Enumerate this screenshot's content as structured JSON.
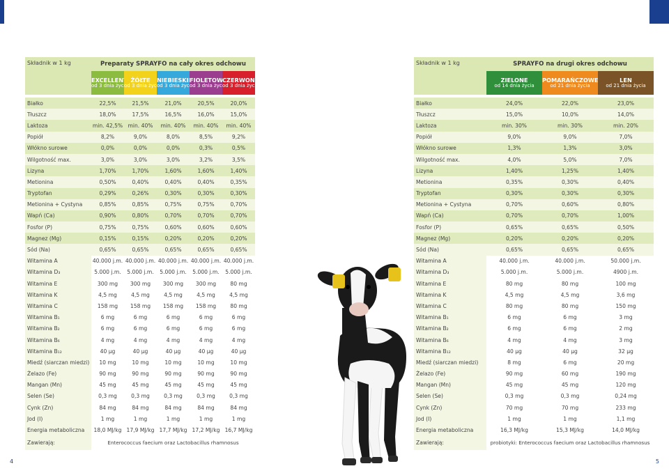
{
  "left": {
    "label_header": "Składnik w 1 kg",
    "title": "Preparaty SPRAYFO na cały okres odchowu",
    "products": [
      {
        "name": "EXCELLENT",
        "sub": "od 3 dnia życia",
        "bg": "#8bbb3f",
        "color": "#ffffff"
      },
      {
        "name": "ŻÓŁTE",
        "sub": "od 3 dnia życia",
        "bg": "#f2d21b",
        "color": "#ffffff"
      },
      {
        "name": "NIEBIESKIE",
        "sub": "od 3 dnia życia",
        "bg": "#36a9dc",
        "color": "#ffffff"
      },
      {
        "name": "FIOLETOWE",
        "sub": "od 3 dnia życia",
        "bg": "#9b3e8f",
        "color": "#ffffff"
      },
      {
        "name": "CZERWONE",
        "sub": "od 3 dnia życia",
        "bg": "#d7202c",
        "color": "#ffffff"
      }
    ],
    "rows": [
      {
        "label": "Białko",
        "values": [
          "22,5%",
          "21,5%",
          "21,0%",
          "20,5%",
          "20,0%"
        ]
      },
      {
        "label": "Tłuszcz",
        "values": [
          "18,0%",
          "17,5%",
          "16,5%",
          "16,0%",
          "15,0%"
        ]
      },
      {
        "label": "Laktoza",
        "values": [
          "min. 42,5%",
          "min. 40%",
          "min. 40%",
          "min. 40%",
          "min. 40%"
        ]
      },
      {
        "label": "Popiół",
        "values": [
          "8,2%",
          "9,0%",
          "8,0%",
          "8,5%",
          "9,2%"
        ]
      },
      {
        "label": "Włókno surowe",
        "values": [
          "0,0%",
          "0,0%",
          "0,0%",
          "0,3%",
          "0,5%"
        ]
      },
      {
        "label": "Wilgotność max.",
        "values": [
          "3,0%",
          "3,0%",
          "3,0%",
          "3,2%",
          "3,5%"
        ]
      },
      {
        "label": "Lizyna",
        "values": [
          "1,70%",
          "1,70%",
          "1,60%",
          "1,60%",
          "1,40%"
        ]
      },
      {
        "label": "Metionina",
        "values": [
          "0,50%",
          "0,40%",
          "0,40%",
          "0,40%",
          "0,35%"
        ]
      },
      {
        "label": "Tryptofan",
        "values": [
          "0,29%",
          "0,26%",
          "0,30%",
          "0,30%",
          "0,30%"
        ]
      },
      {
        "label": "Metionina + Cystyna",
        "values": [
          "0,85%",
          "0,85%",
          "0,75%",
          "0,75%",
          "0,70%"
        ]
      },
      {
        "label": "Wapń (Ca)",
        "values": [
          "0,90%",
          "0,80%",
          "0,70%",
          "0,70%",
          "0,70%"
        ]
      },
      {
        "label": "Fosfor (P)",
        "values": [
          "0,75%",
          "0,75%",
          "0,60%",
          "0,60%",
          "0,60%"
        ]
      },
      {
        "label": "Magnez (Mg)",
        "values": [
          "0,15%",
          "0,15%",
          "0,20%",
          "0,20%",
          "0,20%"
        ]
      },
      {
        "label": "Sód (Na)",
        "values": [
          "0,65%",
          "0,65%",
          "0,65%",
          "0,65%",
          "0,65%"
        ]
      },
      {
        "label": "Witamina A",
        "values": [
          "40.000 j.m.",
          "40.000 j.m.",
          "40.000 j.m.",
          "40.000 j.m.",
          "40.000 j.m."
        ]
      },
      {
        "label": "Witamina D₃",
        "values": [
          "5.000 j.m.",
          "5.000 j.m.",
          "5.000 j.m.",
          "5.000 j.m.",
          "5.000 j.m."
        ]
      },
      {
        "label": "Witamina E",
        "values": [
          "300 mg",
          "300 mg",
          "300 mg",
          "300 mg",
          "80 mg"
        ]
      },
      {
        "label": "Witamina K",
        "values": [
          "4,5 mg",
          "4,5 mg",
          "4,5 mg",
          "4,5 mg",
          "4,5 mg"
        ]
      },
      {
        "label": "Witamina C",
        "values": [
          "158 mg",
          "158 mg",
          "158 mg",
          "158 mg",
          "80 mg"
        ]
      },
      {
        "label": "Witamina B₁",
        "values": [
          "6 mg",
          "6 mg",
          "6 mg",
          "6 mg",
          "6 mg"
        ]
      },
      {
        "label": "Witamina B₂",
        "values": [
          "6 mg",
          "6 mg",
          "6 mg",
          "6 mg",
          "6 mg"
        ]
      },
      {
        "label": "Witamina B₆",
        "values": [
          "4 mg",
          "4 mg",
          "4 mg",
          "4 mg",
          "4 mg"
        ]
      },
      {
        "label": "Witamina B₁₂",
        "values": [
          "40 µg",
          "40 µg",
          "40 µg",
          "40 µg",
          "40 µg"
        ]
      },
      {
        "label": "Miedź (siarczan miedzi)",
        "values": [
          "10 mg",
          "10 mg",
          "10 mg",
          "10 mg",
          "10 mg"
        ]
      },
      {
        "label": "Żelazo (Fe)",
        "values": [
          "90 mg",
          "90 mg",
          "90 mg",
          "90 mg",
          "90 mg"
        ]
      },
      {
        "label": "Mangan (Mn)",
        "values": [
          "45 mg",
          "45 mg",
          "45 mg",
          "45 mg",
          "45 mg"
        ]
      },
      {
        "label": "Selen (Se)",
        "values": [
          "0,3 mg",
          "0,3 mg",
          "0,3 mg",
          "0,3 mg",
          "0,3 mg"
        ]
      },
      {
        "label": "Cynk (Zn)",
        "values": [
          "84 mg",
          "84 mg",
          "84 mg",
          "84 mg",
          "84 mg"
        ]
      },
      {
        "label": "Jod (I)",
        "values": [
          "1 mg",
          "1 mg",
          "1 mg",
          "1 mg",
          "1 mg"
        ]
      },
      {
        "label": "Energia metaboliczna",
        "values": [
          "18,0 MJ/kg",
          "17,9 MJ/kg",
          "17,7 MJ/kg",
          "17,2 MJ/kg",
          "16,7 MJ/kg"
        ]
      }
    ],
    "contains_label": "Zawierają:",
    "contains_value": "Enterococcus faecium oraz Lactobacillus rhamnosus",
    "page_number": "4"
  },
  "right": {
    "label_header": "Składnik w 1 kg",
    "title": "SPRAYFO na drugi okres odchowu",
    "products": [
      {
        "name": "ZIELONE",
        "sub": "od 14 dnia życia",
        "bg": "#2f8f3b",
        "color": "#ffffff"
      },
      {
        "name": "POMARAŃCZOWE",
        "sub": "od 21 dnia życia",
        "bg": "#ef8a1e",
        "color": "#ffffff"
      },
      {
        "name": "LEN",
        "sub": "od 21 dnia życia",
        "bg": "#7a5426",
        "color": "#ffffff"
      }
    ],
    "rows": [
      {
        "label": "Białko",
        "values": [
          "24,0%",
          "22,0%",
          "23,0%"
        ]
      },
      {
        "label": "Tłuszcz",
        "values": [
          "15,0%",
          "10,0%",
          "14,0%"
        ]
      },
      {
        "label": "Laktoza",
        "values": [
          "min. 30%",
          "min. 30%",
          "min. 20%"
        ]
      },
      {
        "label": "Popiół",
        "values": [
          "9,0%",
          "9,0%",
          "7,0%"
        ]
      },
      {
        "label": "Włókno surowe",
        "values": [
          "1,3%",
          "1,3%",
          "3,0%"
        ]
      },
      {
        "label": "Wilgotność max.",
        "values": [
          "4,0%",
          "5,0%",
          "7,0%"
        ]
      },
      {
        "label": "Lizyna",
        "values": [
          "1,40%",
          "1,25%",
          "1,40%"
        ]
      },
      {
        "label": "Metionina",
        "values": [
          "0,35%",
          "0,30%",
          "0,40%"
        ]
      },
      {
        "label": "Tryptofan",
        "values": [
          "0,30%",
          "0,30%",
          "0,30%"
        ]
      },
      {
        "label": "Metionina + Cystyna",
        "values": [
          "0,70%",
          "0,60%",
          "0,80%"
        ]
      },
      {
        "label": "Wapń (Ca)",
        "values": [
          "0,70%",
          "0,70%",
          "1,00%"
        ]
      },
      {
        "label": "Fosfor (P)",
        "values": [
          "0,65%",
          "0,65%",
          "0,50%"
        ]
      },
      {
        "label": "Magnez (Mg)",
        "values": [
          "0,20%",
          "0,20%",
          "0,20%"
        ]
      },
      {
        "label": "Sód (Na)",
        "values": [
          "0,65%",
          "0,65%",
          "0,65%"
        ]
      },
      {
        "label": "Witamina A",
        "values": [
          "40.000 j.m.",
          "40.000 j.m.",
          "50.000 j.m."
        ]
      },
      {
        "label": "Witamina D₃",
        "values": [
          "5.000 j.m.",
          "5.000 j.m.",
          "4900 j.m."
        ]
      },
      {
        "label": "Witamina E",
        "values": [
          "80 mg",
          "80 mg",
          "100 mg"
        ]
      },
      {
        "label": "Witamina K",
        "values": [
          "4,5 mg",
          "4,5 mg",
          "3,6 mg"
        ]
      },
      {
        "label": "Witamina C",
        "values": [
          "80 mg",
          "80 mg",
          "150 mg"
        ]
      },
      {
        "label": "Witamina B₁",
        "values": [
          "6 mg",
          "6 mg",
          "3 mg"
        ]
      },
      {
        "label": "Witamina B₂",
        "values": [
          "6 mg",
          "6 mg",
          "2 mg"
        ]
      },
      {
        "label": "Witamina B₆",
        "values": [
          "4 mg",
          "4 mg",
          "3 mg"
        ]
      },
      {
        "label": "Witamina B₁₂",
        "values": [
          "40 µg",
          "40 µg",
          "32 µg"
        ]
      },
      {
        "label": "Miedź (siarczan miedzi)",
        "values": [
          "8 mg",
          "6 mg",
          "20 mg"
        ]
      },
      {
        "label": "Żelazo (Fe)",
        "values": [
          "90 mg",
          "60 mg",
          "190 mg"
        ]
      },
      {
        "label": "Mangan (Mn)",
        "values": [
          "45 mg",
          "45 mg",
          "120 mg"
        ]
      },
      {
        "label": "Selen (Se)",
        "values": [
          "0,3 mg",
          "0,3 mg",
          "0,24 mg"
        ]
      },
      {
        "label": "Cynk (Zn)",
        "values": [
          "70 mg",
          "70 mg",
          "233 mg"
        ]
      },
      {
        "label": "Jod (I)",
        "values": [
          "1 mg",
          "1 mg",
          "1,1 mg"
        ]
      },
      {
        "label": "Energia metaboliczna",
        "values": [
          "16,3 MJ/kg",
          "15,3 MJ/kg",
          "14,0 MJ/kg"
        ]
      }
    ],
    "contains_label": "Zawierają:",
    "contains_value": "probiotyki: Enterococcus faecium oraz Lactobacillus rhamnosus",
    "page_number": "5"
  },
  "colors": {
    "green_dark": "#dfeabd",
    "green_light": "#f2f6e2",
    "blue": "#1b3f8f"
  },
  "image": {
    "subject": "calf-photo"
  }
}
